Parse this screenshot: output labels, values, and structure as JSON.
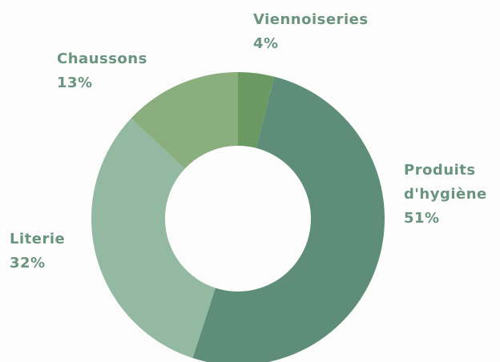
{
  "chart_data": {
    "type": "donut",
    "categories": [
      "Viennoiseries",
      "Produits d'hygiène",
      "Literie",
      "Chaussons"
    ],
    "values": [
      4,
      51,
      32,
      13
    ],
    "value_labels": [
      "4%",
      "51%",
      "32%",
      "13%"
    ],
    "colors": [
      "#6a9a62",
      "#5e8d79",
      "#93b9a2",
      "#8aae7d"
    ]
  }
}
